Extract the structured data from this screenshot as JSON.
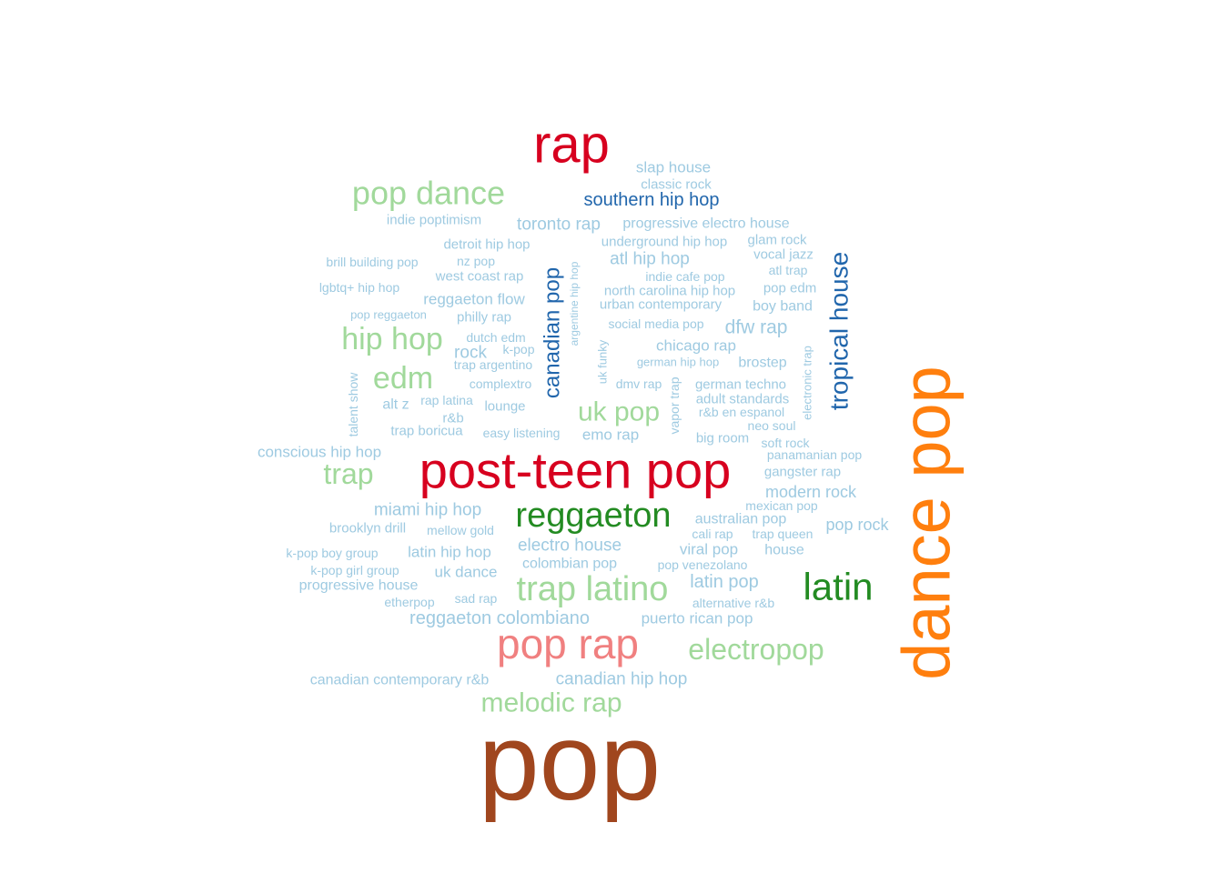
{
  "colors": {
    "c1": "#9ecae1",
    "c2": "#2166ac",
    "c3": "#a1d99b",
    "c4": "#238b22",
    "c5": "#f08080",
    "c6": "#d7001f",
    "c7": "#ff7f0e",
    "c8": "#a0461e"
  },
  "words": [
    {
      "text": "pop",
      "color": "c8"
    },
    {
      "text": "dance pop",
      "color": "c7"
    },
    {
      "text": "post-teen pop",
      "color": "c6"
    },
    {
      "text": "rap",
      "color": "c6"
    },
    {
      "text": "pop rap",
      "color": "c5"
    },
    {
      "text": "latin",
      "color": "c4"
    },
    {
      "text": "reggaeton",
      "color": "c4"
    },
    {
      "text": "trap latino",
      "color": "c3"
    },
    {
      "text": "pop dance",
      "color": "c3"
    },
    {
      "text": "hip hop",
      "color": "c3"
    },
    {
      "text": "edm",
      "color": "c3"
    },
    {
      "text": "electropop",
      "color": "c3"
    },
    {
      "text": "melodic rap",
      "color": "c3"
    },
    {
      "text": "trap",
      "color": "c3"
    },
    {
      "text": "uk pop",
      "color": "c3"
    },
    {
      "text": "tropical house",
      "color": "c2"
    },
    {
      "text": "canadian pop",
      "color": "c2"
    },
    {
      "text": "southern hip hop",
      "color": "c2"
    },
    {
      "text": "slap house",
      "color": "c1"
    },
    {
      "text": "classic rock",
      "color": "c1"
    },
    {
      "text": "indie poptimism",
      "color": "c1"
    },
    {
      "text": "toronto rap",
      "color": "c1"
    },
    {
      "text": "progressive electro house",
      "color": "c1"
    },
    {
      "text": "detroit hip hop",
      "color": "c1"
    },
    {
      "text": "underground hip hop",
      "color": "c1"
    },
    {
      "text": "glam rock",
      "color": "c1"
    },
    {
      "text": "brill building pop",
      "color": "c1"
    },
    {
      "text": "nz pop",
      "color": "c1"
    },
    {
      "text": "atl hip hop",
      "color": "c1"
    },
    {
      "text": "vocal jazz",
      "color": "c1"
    },
    {
      "text": "west coast rap",
      "color": "c1"
    },
    {
      "text": "indie cafe pop",
      "color": "c1"
    },
    {
      "text": "atl trap",
      "color": "c1"
    },
    {
      "text": "lgbtq+ hip hop",
      "color": "c1"
    },
    {
      "text": "north carolina hip hop",
      "color": "c1"
    },
    {
      "text": "pop edm",
      "color": "c1"
    },
    {
      "text": "reggaeton flow",
      "color": "c1"
    },
    {
      "text": "urban contemporary",
      "color": "c1"
    },
    {
      "text": "boy band",
      "color": "c1"
    },
    {
      "text": "pop reggaeton",
      "color": "c1"
    },
    {
      "text": "philly rap",
      "color": "c1"
    },
    {
      "text": "social media pop",
      "color": "c1"
    },
    {
      "text": "dfw rap",
      "color": "c1"
    },
    {
      "text": "argentine hip hop",
      "color": "c1"
    },
    {
      "text": "dutch edm",
      "color": "c1"
    },
    {
      "text": "chicago rap",
      "color": "c1"
    },
    {
      "text": "rock",
      "color": "c1"
    },
    {
      "text": "k-pop",
      "color": "c1"
    },
    {
      "text": "trap argentino",
      "color": "c1"
    },
    {
      "text": "german hip hop",
      "color": "c1"
    },
    {
      "text": "brostep",
      "color": "c1"
    },
    {
      "text": "uk funky",
      "color": "c1"
    },
    {
      "text": "electronic trap",
      "color": "c1"
    },
    {
      "text": "talent show",
      "color": "c1"
    },
    {
      "text": "complextro",
      "color": "c1"
    },
    {
      "text": "dmv rap",
      "color": "c1"
    },
    {
      "text": "german techno",
      "color": "c1"
    },
    {
      "text": "alt z",
      "color": "c1"
    },
    {
      "text": "rap latina",
      "color": "c1"
    },
    {
      "text": "lounge",
      "color": "c1"
    },
    {
      "text": "adult standards",
      "color": "c1"
    },
    {
      "text": "vapor trap",
      "color": "c1"
    },
    {
      "text": "r&b",
      "color": "c1"
    },
    {
      "text": "r&b en espanol",
      "color": "c1"
    },
    {
      "text": "neo soul",
      "color": "c1"
    },
    {
      "text": "trap boricua",
      "color": "c1"
    },
    {
      "text": "easy listening",
      "color": "c1"
    },
    {
      "text": "emo rap",
      "color": "c1"
    },
    {
      "text": "big room",
      "color": "c1"
    },
    {
      "text": "soft rock",
      "color": "c1"
    },
    {
      "text": "conscious hip hop",
      "color": "c1"
    },
    {
      "text": "panamanian pop",
      "color": "c1"
    },
    {
      "text": "gangster rap",
      "color": "c1"
    },
    {
      "text": "modern rock",
      "color": "c1"
    },
    {
      "text": "mexican pop",
      "color": "c1"
    },
    {
      "text": "miami hip hop",
      "color": "c1"
    },
    {
      "text": "australian pop",
      "color": "c1"
    },
    {
      "text": "brooklyn drill",
      "color": "c1"
    },
    {
      "text": "mellow gold",
      "color": "c1"
    },
    {
      "text": "cali rap",
      "color": "c1"
    },
    {
      "text": "trap queen",
      "color": "c1"
    },
    {
      "text": "pop rock",
      "color": "c1"
    },
    {
      "text": "electro house",
      "color": "c1"
    },
    {
      "text": "k-pop boy group",
      "color": "c1"
    },
    {
      "text": "latin hip hop",
      "color": "c1"
    },
    {
      "text": "viral pop",
      "color": "c1"
    },
    {
      "text": "house",
      "color": "c1"
    },
    {
      "text": "colombian pop",
      "color": "c1"
    },
    {
      "text": "pop venezolano",
      "color": "c1"
    },
    {
      "text": "k-pop girl group",
      "color": "c1"
    },
    {
      "text": "uk dance",
      "color": "c1"
    },
    {
      "text": "latin pop",
      "color": "c1"
    },
    {
      "text": "progressive house",
      "color": "c1"
    },
    {
      "text": "etherpop",
      "color": "c1"
    },
    {
      "text": "sad rap",
      "color": "c1"
    },
    {
      "text": "alternative r&b",
      "color": "c1"
    },
    {
      "text": "reggaeton colombiano",
      "color": "c1"
    },
    {
      "text": "puerto rican pop",
      "color": "c1"
    },
    {
      "text": "canadian contemporary r&b",
      "color": "c1"
    },
    {
      "text": "canadian hip hop",
      "color": "c1"
    }
  ]
}
